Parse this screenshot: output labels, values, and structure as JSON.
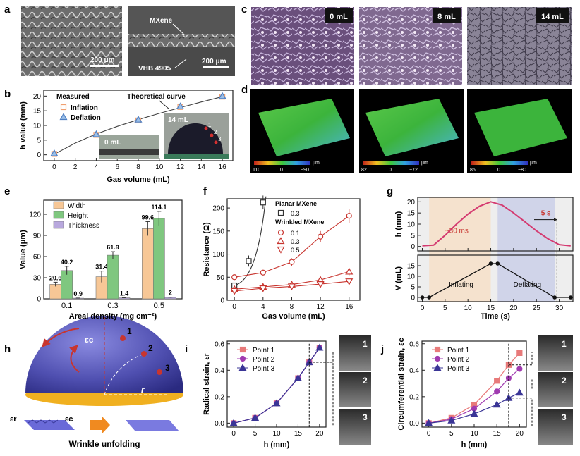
{
  "panel_labels": [
    "a",
    "b",
    "c",
    "d",
    "e",
    "f",
    "g",
    "h",
    "i",
    "j"
  ],
  "panel_a": {
    "left": {
      "scale_bar": "200 μm"
    },
    "right": {
      "label_top": "MXene",
      "label_bottom": "VHB 4905",
      "scale_bar": "200 μm"
    }
  },
  "panel_c": {
    "images": [
      {
        "label": "0 mL"
      },
      {
        "label": "8 mL"
      },
      {
        "label": "14 mL"
      }
    ]
  },
  "panel_d": {
    "maps": [
      {
        "min": "−90",
        "zero": "0",
        "max": "110",
        "unit": "μm"
      },
      {
        "min": "−72",
        "zero": "0",
        "max": "82",
        "unit": "μm"
      },
      {
        "min": "−80",
        "zero": "0",
        "max": "86",
        "unit": "μm"
      }
    ]
  },
  "colors": {
    "inflation": "#f0a070",
    "deflation": "#4f7fc2",
    "width": "#f7c796",
    "height": "#7fc77f",
    "thickness": "#b8a8dd",
    "red": "#c8352f",
    "purple": "#a03bb0",
    "navy": "#3a3596",
    "pink": "#d43a70"
  },
  "chart_data": [
    {
      "panel": "b",
      "type": "scatter",
      "xlabel": "Gas volume (mL)",
      "ylabel": "h value (mm)",
      "xlim": [
        -1,
        17
      ],
      "ylim": [
        -2,
        22
      ],
      "xticks": [
        0,
        2,
        4,
        6,
        8,
        10,
        12,
        14,
        16
      ],
      "yticks": [
        0,
        5,
        10,
        15,
        20
      ],
      "legend_title": "Measured",
      "series": [
        {
          "name": "Inflation",
          "marker": "square",
          "x": [
            0,
            4,
            8,
            12,
            16
          ],
          "y": [
            0.3,
            6.8,
            11.7,
            16.3,
            19.8
          ]
        },
        {
          "name": "Deflation",
          "marker": "triangle",
          "x": [
            0,
            4,
            8,
            12,
            16
          ],
          "y": [
            0.5,
            7.0,
            12.0,
            16.5,
            20.0
          ]
        }
      ],
      "theory": {
        "name": "Theoretical curve",
        "x": [
          0,
          2,
          4,
          6,
          8,
          10,
          12,
          14,
          16
        ],
        "y": [
          0.2,
          4.0,
          7.1,
          9.7,
          12.0,
          14.1,
          16.1,
          18.0,
          19.8
        ]
      },
      "inset_labels": {
        "left": "0 mL",
        "right": "14 mL",
        "points": [
          "1",
          "2",
          "3"
        ]
      }
    },
    {
      "panel": "e",
      "type": "bar",
      "xlabel": "Areal density (mg cm⁻²)",
      "ylabel": "Value (μm)",
      "ylim": [
        0,
        140
      ],
      "yticks": [
        0,
        30,
        60,
        90,
        120
      ],
      "categories": [
        "0.1",
        "0.3",
        "0.5"
      ],
      "series": [
        {
          "name": "Width",
          "values": [
            20.6,
            31.4,
            99.6
          ],
          "errors": [
            3,
            8,
            10
          ]
        },
        {
          "name": "Height",
          "values": [
            40.2,
            61.9,
            114.1
          ],
          "errors": [
            6,
            5,
            10
          ]
        },
        {
          "name": "Thickness",
          "values": [
            0.9,
            1.4,
            2.0
          ],
          "errors": [
            0.2,
            0.2,
            0.3
          ]
        }
      ]
    },
    {
      "panel": "f",
      "type": "line",
      "xlabel": "Gas volume (mL)",
      "ylabel": "Resistance (Ω)",
      "xlim": [
        -1,
        17.5
      ],
      "ylim": [
        0,
        220
      ],
      "xticks": [
        0,
        4,
        8,
        12,
        16
      ],
      "yticks": [
        0,
        50,
        100,
        150,
        200
      ],
      "legend_title_1": "Planar MXene",
      "legend_title_2": "Wrinkled MXene",
      "series": [
        {
          "name": "0.3",
          "group": "planar",
          "marker": "square",
          "x": [
            0,
            2,
            4
          ],
          "y": [
            32,
            85,
            212
          ],
          "err": [
            4,
            12,
            15
          ]
        },
        {
          "name": "0.1",
          "group": "wrinkled",
          "marker": "circle",
          "x": [
            0,
            4,
            8,
            12,
            16
          ],
          "y": [
            50,
            60,
            83,
            138,
            183
          ],
          "err": [
            5,
            4,
            8,
            12,
            15
          ]
        },
        {
          "name": "0.3",
          "group": "wrinkled",
          "marker": "triangle",
          "x": [
            0,
            4,
            8,
            12,
            16
          ],
          "y": [
            24,
            29,
            34,
            44,
            62
          ],
          "err": [
            3,
            3,
            4,
            6,
            8
          ]
        },
        {
          "name": "0.5",
          "group": "wrinkled",
          "marker": "triangle-down",
          "x": [
            0,
            4,
            8,
            12,
            16
          ],
          "y": [
            20,
            26,
            30,
            35,
            41
          ],
          "err": [
            2,
            2,
            3,
            3,
            4
          ]
        }
      ]
    },
    {
      "panel": "g",
      "type": "line",
      "xlabel": "Time (s)",
      "ylabel_top": "h (mm)",
      "ylabel_bottom": "V (mL)",
      "xlim": [
        -1,
        33
      ],
      "xticks": [
        0,
        5,
        10,
        15,
        20,
        25,
        30
      ],
      "top": {
        "ylim": [
          -2,
          22
        ],
        "yticks": [
          0,
          5,
          10,
          15,
          20
        ],
        "x": [
          0,
          2.5,
          5,
          7.5,
          10,
          12.5,
          15,
          17.5,
          20,
          22.5,
          25,
          27.5,
          30,
          32.5
        ],
        "y": [
          0.3,
          0.6,
          5,
          10,
          14.5,
          18,
          20,
          18.5,
          15,
          11,
          7,
          3.5,
          0.8,
          0.3
        ]
      },
      "bottom": {
        "ylim": [
          -2,
          20
        ],
        "yticks": [
          0,
          5,
          10,
          15
        ],
        "x": [
          0,
          1.5,
          15,
          16.5,
          29,
          32.5
        ],
        "y": [
          0,
          0,
          16,
          16,
          0,
          0
        ]
      },
      "shading": {
        "inflating": [
          1.5,
          15
        ],
        "deflating": [
          16.5,
          29
        ]
      },
      "annotations": {
        "response": "~30 ms",
        "recovery": "5 s",
        "inflating": "Inflating",
        "deflating": "Deflating"
      }
    },
    {
      "panel": "i",
      "type": "line",
      "xlabel": "h (mm)",
      "ylabel": "Radical strain, εr",
      "xlim": [
        -1.5,
        21.5
      ],
      "ylim": [
        -0.03,
        0.62
      ],
      "xticks": [
        0,
        5,
        10,
        15,
        20
      ],
      "yticks": [
        0.0,
        0.2,
        0.4,
        0.6
      ],
      "series": [
        {
          "name": "Point 1",
          "x": [
            0,
            5,
            10,
            15,
            17.6,
            20
          ],
          "y": [
            0.0,
            0.04,
            0.15,
            0.34,
            0.46,
            0.57
          ]
        },
        {
          "name": "Point 2",
          "x": [
            0,
            5,
            10,
            15,
            17.6,
            20
          ],
          "y": [
            0.0,
            0.04,
            0.15,
            0.34,
            0.46,
            0.57
          ]
        },
        {
          "name": "Point 3",
          "x": [
            0,
            5,
            10,
            15,
            17.6,
            20
          ],
          "y": [
            0.0,
            0.04,
            0.15,
            0.34,
            0.46,
            0.57
          ]
        }
      ],
      "thumb_labels": [
        "1",
        "2",
        "3"
      ]
    },
    {
      "panel": "j",
      "type": "line",
      "xlabel": "h (mm)",
      "ylabel": "Circumferential strain, εc",
      "xlim": [
        -1.5,
        21.5
      ],
      "ylim": [
        -0.03,
        0.62
      ],
      "xticks": [
        0,
        5,
        10,
        15,
        20
      ],
      "yticks": [
        0.0,
        0.2,
        0.4,
        0.6
      ],
      "series": [
        {
          "name": "Point 1",
          "x": [
            0,
            5,
            10,
            15,
            17.6,
            20
          ],
          "y": [
            0.0,
            0.04,
            0.14,
            0.32,
            0.44,
            0.53
          ]
        },
        {
          "name": "Point 2",
          "x": [
            0,
            5,
            10,
            15,
            17.6,
            20
          ],
          "y": [
            0.0,
            0.03,
            0.11,
            0.24,
            0.34,
            0.41
          ]
        },
        {
          "name": "Point 3",
          "x": [
            0,
            5,
            10,
            15,
            17.6,
            20
          ],
          "y": [
            0.0,
            0.02,
            0.07,
            0.14,
            0.19,
            0.23
          ]
        }
      ],
      "thumb_labels": [
        "1",
        "2",
        "3"
      ]
    }
  ],
  "panel_h": {
    "eps_r": "εr",
    "eps_c": "εc",
    "r": "r",
    "points": [
      "1",
      "2",
      "3"
    ],
    "caption": "Wrinkle unfolding"
  }
}
